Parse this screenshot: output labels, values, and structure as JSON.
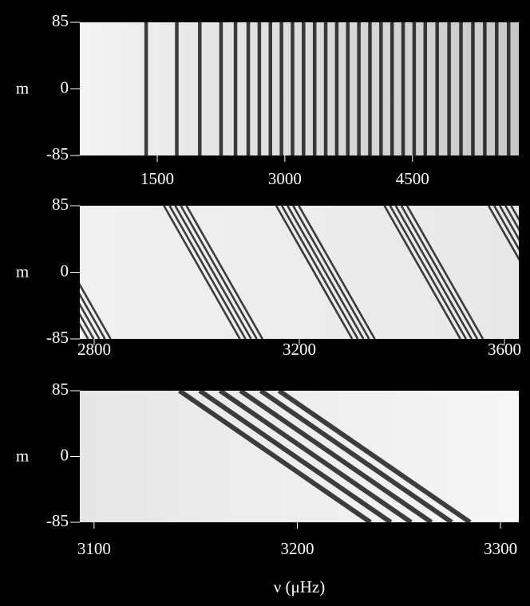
{
  "chart_data": [
    {
      "type": "heatmap",
      "ylabel": "m",
      "xlim": [
        590,
        5750
      ],
      "ylim": [
        -85,
        85
      ],
      "xticks": [
        1500,
        3000,
        4500
      ],
      "yticks": [
        85,
        0,
        -85
      ],
      "color": "#000000",
      "ridges": {
        "top": [
          1370,
          1730,
          2000,
          2250,
          2420,
          2570,
          2700,
          2830,
          2960,
          3090,
          3220,
          3350,
          3480,
          3610,
          3740,
          3870,
          4000,
          4130,
          4260,
          4390,
          4520,
          4650,
          4790,
          4930,
          5070,
          5210,
          5350,
          5490,
          5630
        ]
      }
    },
    {
      "type": "heatmap",
      "ylabel": "m",
      "xlim": [
        2772,
        3628
      ],
      "ylim": [
        -85,
        85
      ],
      "xticks": [
        2800,
        3200,
        3600
      ],
      "yticks": [
        85,
        0,
        -85
      ],
      "color": "#000000",
      "ridges": {
        "top": [
          2640,
          2651,
          2662,
          2673,
          2684,
          2936,
          2947,
          2958,
          2969,
          2980,
          3155,
          3166,
          3177,
          3188,
          3199,
          3366,
          3377,
          3388,
          3399,
          3410,
          3569,
          3580,
          3591,
          3602,
          3613
        ],
        "bottom": [
          2788,
          2799,
          2810,
          2821,
          2832,
          3084,
          3095,
          3106,
          3117,
          3128,
          3303,
          3314,
          3325,
          3336,
          3347,
          3514,
          3525,
          3536,
          3547,
          3558,
          3717,
          3728,
          3739,
          3750,
          3761
        ]
      }
    },
    {
      "type": "heatmap",
      "ylabel": "m",
      "xlabel": "ν  (μHz)",
      "xlim": [
        3093,
        3309
      ],
      "ylim": [
        -85,
        85
      ],
      "xticks": [
        3100,
        3200,
        3300
      ],
      "yticks": [
        85,
        0,
        -85
      ],
      "color": "#000000",
      "ridges": {
        "top": [
          3142,
          3152,
          3162,
          3172,
          3182,
          3191
        ],
        "bottom": [
          3236,
          3246,
          3256,
          3266,
          3276,
          3285
        ]
      }
    }
  ]
}
